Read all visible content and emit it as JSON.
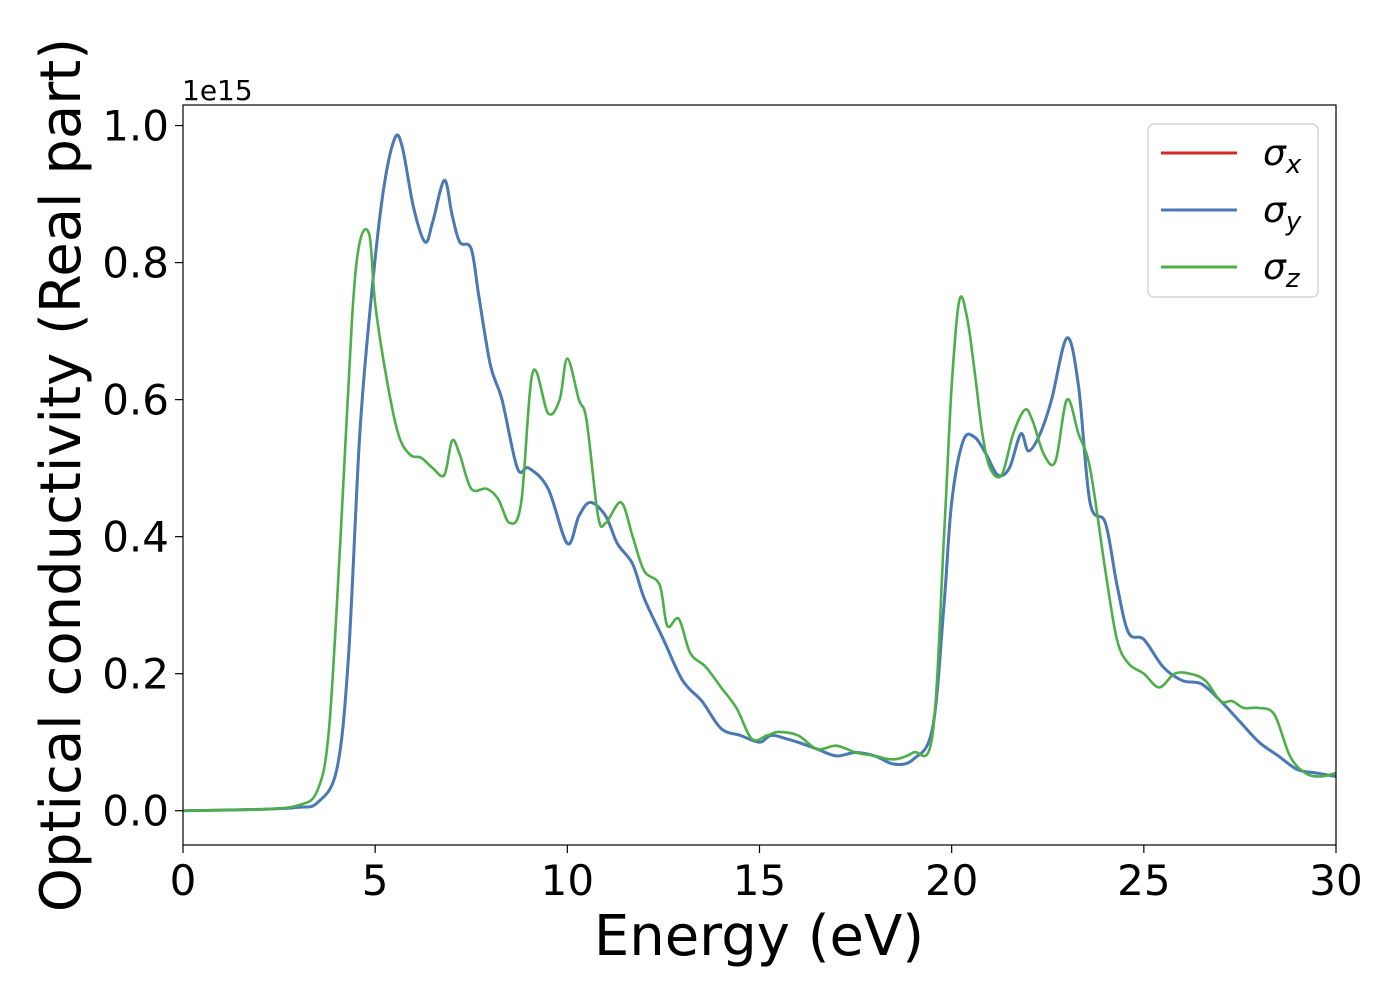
{
  "chart_data": {
    "type": "line",
    "xlabel": "Energy (eV)",
    "ylabel": "Optical conductivity (Real part)",
    "y_offset_label": "1e15",
    "xlim": [
      0,
      30
    ],
    "ylim": [
      -0.05,
      1.03
    ],
    "x_ticks": [
      0,
      5,
      10,
      15,
      20,
      25,
      30
    ],
    "x_tick_labels": [
      "0",
      "5",
      "10",
      "15",
      "20",
      "25",
      "30"
    ],
    "y_ticks": [
      0.0,
      0.2,
      0.4,
      0.6,
      0.8,
      1.0
    ],
    "y_tick_labels": [
      "0.0",
      "0.2",
      "0.4",
      "0.6",
      "0.8",
      "1.0"
    ],
    "grid": false,
    "legend_position": "top-right",
    "series": [
      {
        "name": "σx",
        "legend_symbol": "σ",
        "legend_subscript": "x",
        "color": "#d62728",
        "x": [
          0,
          2,
          3,
          3.5,
          4,
          4.3,
          4.6,
          4.9,
          5.2,
          5.5,
          5.7,
          6.0,
          6.3,
          6.5,
          6.8,
          7.0,
          7.2,
          7.5,
          7.7,
          8.0,
          8.3,
          8.7,
          9.0,
          9.5,
          10.0,
          10.3,
          10.6,
          11.0,
          11.3,
          11.7,
          12.0,
          12.5,
          13.0,
          13.5,
          14.0,
          14.5,
          15.0,
          15.3,
          15.7,
          16.0,
          16.5,
          17.0,
          17.5,
          18.0,
          18.5,
          19.0,
          19.5,
          19.8,
          20.0,
          20.3,
          20.6,
          20.9,
          21.2,
          21.5,
          21.8,
          22.0,
          22.3,
          22.6,
          23.0,
          23.3,
          23.6,
          24.0,
          24.3,
          24.6,
          25.0,
          25.5,
          26.0,
          26.5,
          27.0,
          27.5,
          28.0,
          28.5,
          29.0,
          29.5,
          30.0
        ],
        "values": [
          0.0,
          0.002,
          0.005,
          0.012,
          0.06,
          0.22,
          0.55,
          0.75,
          0.9,
          0.98,
          0.97,
          0.88,
          0.83,
          0.86,
          0.92,
          0.87,
          0.83,
          0.82,
          0.75,
          0.65,
          0.6,
          0.5,
          0.5,
          0.47,
          0.39,
          0.43,
          0.45,
          0.43,
          0.39,
          0.36,
          0.31,
          0.25,
          0.19,
          0.16,
          0.12,
          0.11,
          0.1,
          0.11,
          0.105,
          0.1,
          0.09,
          0.08,
          0.085,
          0.08,
          0.068,
          0.075,
          0.12,
          0.3,
          0.45,
          0.54,
          0.545,
          0.52,
          0.49,
          0.5,
          0.55,
          0.525,
          0.55,
          0.6,
          0.69,
          0.62,
          0.45,
          0.42,
          0.33,
          0.26,
          0.25,
          0.21,
          0.19,
          0.185,
          0.16,
          0.13,
          0.1,
          0.08,
          0.06,
          0.055,
          0.05
        ]
      },
      {
        "name": "σy",
        "legend_symbol": "σ",
        "legend_subscript": "y",
        "color": "#4a7ab5",
        "x": [
          0,
          2,
          3,
          3.5,
          4,
          4.3,
          4.6,
          4.9,
          5.2,
          5.5,
          5.7,
          6.0,
          6.3,
          6.5,
          6.8,
          7.0,
          7.2,
          7.5,
          7.7,
          8.0,
          8.3,
          8.7,
          9.0,
          9.5,
          10.0,
          10.3,
          10.6,
          11.0,
          11.3,
          11.7,
          12.0,
          12.5,
          13.0,
          13.5,
          14.0,
          14.5,
          15.0,
          15.3,
          15.7,
          16.0,
          16.5,
          17.0,
          17.5,
          18.0,
          18.5,
          19.0,
          19.5,
          19.8,
          20.0,
          20.3,
          20.6,
          20.9,
          21.2,
          21.5,
          21.8,
          22.0,
          22.3,
          22.6,
          23.0,
          23.3,
          23.6,
          24.0,
          24.3,
          24.6,
          25.0,
          25.5,
          26.0,
          26.5,
          27.0,
          27.5,
          28.0,
          28.5,
          29.0,
          29.5,
          30.0
        ],
        "values": [
          0.0,
          0.002,
          0.005,
          0.012,
          0.06,
          0.22,
          0.55,
          0.75,
          0.9,
          0.98,
          0.97,
          0.88,
          0.83,
          0.86,
          0.92,
          0.87,
          0.83,
          0.82,
          0.75,
          0.65,
          0.6,
          0.5,
          0.5,
          0.47,
          0.39,
          0.43,
          0.45,
          0.43,
          0.39,
          0.36,
          0.31,
          0.25,
          0.19,
          0.16,
          0.12,
          0.11,
          0.1,
          0.11,
          0.105,
          0.1,
          0.09,
          0.08,
          0.085,
          0.08,
          0.068,
          0.075,
          0.12,
          0.3,
          0.45,
          0.54,
          0.545,
          0.52,
          0.49,
          0.5,
          0.55,
          0.525,
          0.55,
          0.6,
          0.69,
          0.62,
          0.45,
          0.42,
          0.33,
          0.26,
          0.25,
          0.21,
          0.19,
          0.185,
          0.16,
          0.13,
          0.1,
          0.08,
          0.06,
          0.055,
          0.05
        ]
      },
      {
        "name": "σz",
        "legend_symbol": "σ",
        "legend_subscript": "z",
        "color": "#4daf4a",
        "x": [
          0,
          2,
          3,
          3.5,
          3.8,
          4.1,
          4.4,
          4.6,
          4.85,
          5.0,
          5.3,
          5.6,
          5.9,
          6.2,
          6.5,
          6.8,
          7.0,
          7.2,
          7.5,
          7.9,
          8.2,
          8.5,
          8.8,
          9.1,
          9.5,
          9.8,
          10.0,
          10.3,
          10.5,
          10.8,
          11.0,
          11.4,
          11.7,
          12.0,
          12.4,
          12.6,
          12.9,
          13.2,
          13.6,
          14.0,
          14.4,
          14.8,
          15.2,
          15.5,
          16.0,
          16.5,
          17.0,
          17.5,
          18.0,
          18.5,
          19.0,
          19.5,
          19.8,
          20.0,
          20.2,
          20.4,
          20.6,
          20.8,
          21.0,
          21.3,
          21.6,
          21.9,
          22.1,
          22.4,
          22.7,
          23.0,
          23.3,
          23.6,
          24.0,
          24.3,
          24.6,
          25.0,
          25.4,
          25.8,
          26.2,
          26.6,
          27.0,
          27.3,
          27.6,
          28.0,
          28.4,
          28.8,
          29.2,
          29.6,
          30.0
        ],
        "values": [
          0.0,
          0.002,
          0.008,
          0.03,
          0.12,
          0.4,
          0.72,
          0.83,
          0.84,
          0.74,
          0.63,
          0.55,
          0.52,
          0.515,
          0.5,
          0.49,
          0.54,
          0.52,
          0.47,
          0.47,
          0.455,
          0.42,
          0.45,
          0.64,
          0.58,
          0.6,
          0.66,
          0.6,
          0.57,
          0.43,
          0.42,
          0.45,
          0.4,
          0.35,
          0.33,
          0.27,
          0.28,
          0.23,
          0.21,
          0.18,
          0.15,
          0.105,
          0.11,
          0.115,
          0.11,
          0.09,
          0.095,
          0.085,
          0.08,
          0.075,
          0.085,
          0.11,
          0.4,
          0.62,
          0.745,
          0.72,
          0.64,
          0.55,
          0.5,
          0.49,
          0.55,
          0.585,
          0.57,
          0.52,
          0.51,
          0.6,
          0.55,
          0.5,
          0.35,
          0.25,
          0.215,
          0.2,
          0.18,
          0.2,
          0.2,
          0.19,
          0.16,
          0.16,
          0.15,
          0.15,
          0.14,
          0.08,
          0.055,
          0.05,
          0.055
        ]
      }
    ]
  }
}
